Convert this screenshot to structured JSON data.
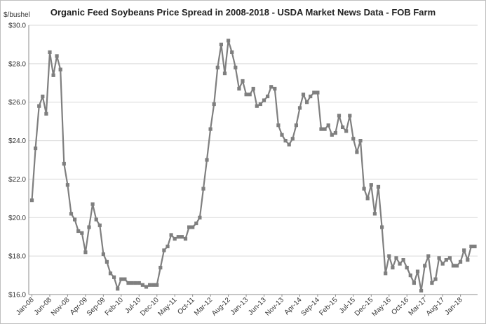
{
  "chart_data": {
    "type": "line",
    "title": "Organic Feed Soybeans Price Spread in 2008-2018 - USDA Market News Data - FOB Farm",
    "ylabel": "$/bushel",
    "xlabel": "",
    "ylim": [
      16.0,
      30.0
    ],
    "y_ticks": [
      "$16.0",
      "$18.0",
      "$20.0",
      "$22.0",
      "$24.0",
      "$26.0",
      "$28.0",
      "$30.0"
    ],
    "x_tick_labels": [
      "Jan-08",
      "Jun-08",
      "Nov-08",
      "Apr-09",
      "Sep-09",
      "Feb-10",
      "Jul-10",
      "Dec-10",
      "May-11",
      "Oct-11",
      "Mar-12",
      "Aug-12",
      "Jan-13",
      "Jun-13",
      "Nov-13",
      "Apr-14",
      "Sep-14",
      "Feb-15",
      "Jul-15",
      "Dec-15",
      "May-16",
      "Oct-16",
      "Mar-17",
      "Aug-17",
      "Jan-18"
    ],
    "grid": "horizontal",
    "legend": "none",
    "line_color": "#7f7f7f",
    "series": [
      {
        "values": [
          20.9,
          23.6,
          25.8,
          26.3,
          25.4,
          28.6,
          27.4,
          28.4,
          27.7,
          22.8,
          21.7,
          20.2,
          19.9,
          19.3,
          19.2,
          18.2,
          19.5,
          20.7,
          19.9,
          19.6,
          18.1,
          17.7,
          17.1,
          16.9,
          16.3,
          16.8,
          16.8,
          16.6,
          16.6,
          16.6,
          16.6,
          16.5,
          16.4,
          16.5,
          16.5,
          16.5,
          17.4,
          18.3,
          18.5,
          19.1,
          18.9,
          19.0,
          19.0,
          18.9,
          19.5,
          19.5,
          19.7,
          20.0,
          21.5,
          23.0,
          24.6,
          25.9,
          27.8,
          29.0,
          27.5,
          29.2,
          28.6,
          27.8,
          26.7,
          27.1,
          26.4,
          26.4,
          26.7,
          25.8,
          25.9,
          26.1,
          26.3,
          26.8,
          26.7,
          24.8,
          24.3,
          24.0,
          23.8,
          24.1,
          24.8,
          25.7,
          26.4,
          26.0,
          26.3,
          26.5,
          26.5,
          24.6,
          24.6,
          24.8,
          24.3,
          24.4,
          25.3,
          24.7,
          24.5,
          25.3,
          24.1,
          23.4,
          24.0,
          21.5,
          21.0,
          21.7,
          20.2,
          21.6,
          19.5,
          17.1,
          18.0,
          17.4,
          17.9,
          17.6,
          17.8,
          17.4,
          17.0,
          16.6,
          17.2,
          16.2,
          17.5,
          18.0,
          16.6,
          16.8,
          17.9,
          17.6,
          17.8,
          17.9,
          17.5,
          17.5,
          17.7,
          18.3,
          17.8,
          18.5,
          18.5
        ]
      }
    ]
  }
}
